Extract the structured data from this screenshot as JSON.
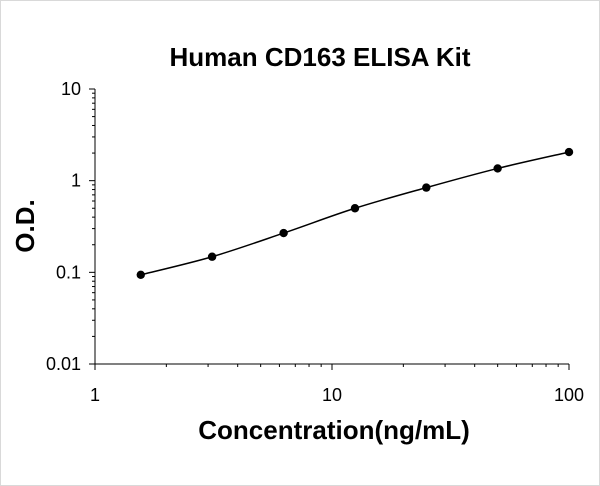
{
  "chart_data": {
    "type": "scatter",
    "title": "Human CD163 ELISA Kit",
    "xlabel": "Concentration(ng/mL)",
    "ylabel": "O.D.",
    "xscale": "log",
    "yscale": "log",
    "xlim": [
      1,
      100
    ],
    "ylim": [
      0.01,
      10
    ],
    "x_ticks": [
      "1",
      "10",
      "100"
    ],
    "y_ticks": [
      "0.01",
      "0.1",
      "1",
      "10"
    ],
    "grid": false,
    "legend": "none",
    "trendline": "smooth",
    "series": [
      {
        "x": [
          1.56,
          3.12,
          6.25,
          12.5,
          25,
          50,
          100
        ],
        "y": [
          0.094,
          0.148,
          0.268,
          0.5,
          0.84,
          1.36,
          2.05
        ],
        "color": "#000000"
      }
    ]
  }
}
